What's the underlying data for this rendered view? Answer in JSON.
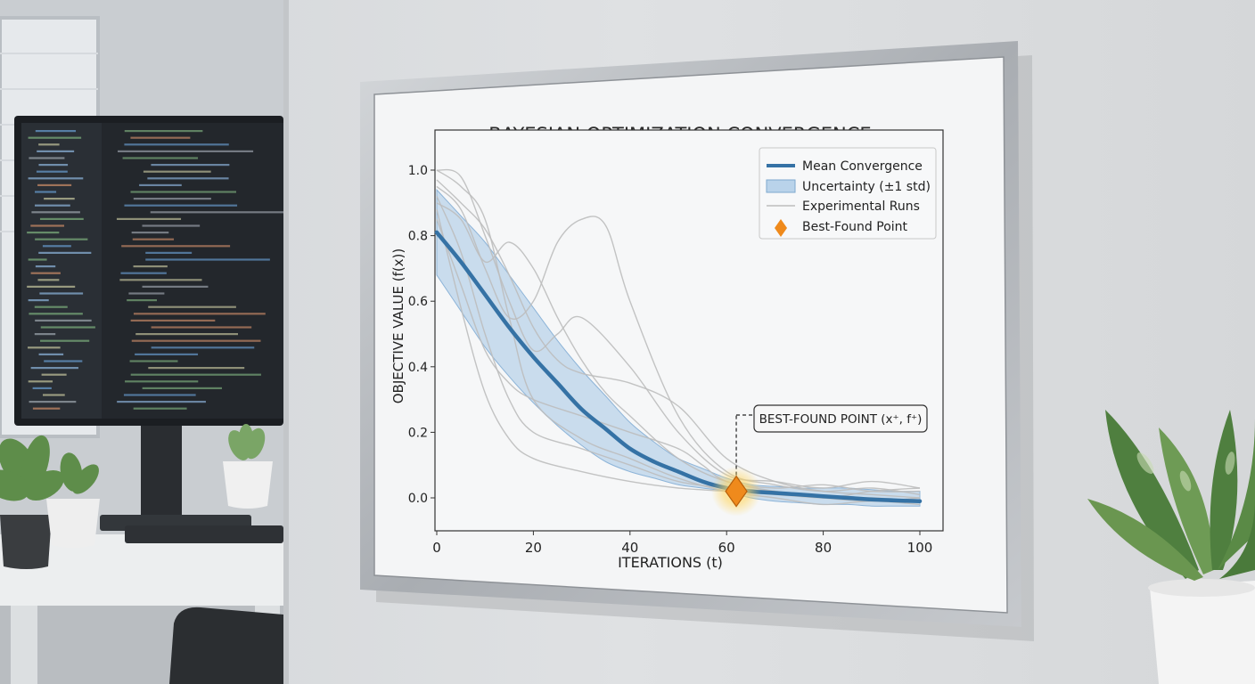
{
  "chart_data": {
    "type": "line",
    "title": "BAYESIAN OPTIMIZATION CONVERGENCE",
    "xlabel": "ITERATIONS (t)",
    "ylabel": "OBJECTIVE VALUE (f(x))",
    "xlim": [
      0,
      100
    ],
    "ylim": [
      -0.05,
      1.05
    ],
    "xticks": [
      "0",
      "20",
      "40",
      "60",
      "80",
      "100"
    ],
    "yticks": [
      "0.0",
      "0.2",
      "0.4",
      "0.6",
      "0.8",
      "1.0"
    ],
    "grid": false,
    "legend_position": "top-right",
    "legend": [
      {
        "label": "Mean Convergence",
        "kind": "line"
      },
      {
        "label": "Uncertainty (±1 std)",
        "kind": "band"
      },
      {
        "label": "Experimental Runs",
        "kind": "thin-line"
      },
      {
        "label": "Best-Found Point",
        "kind": "diamond"
      }
    ],
    "colors": {
      "mean": "#3572a5",
      "band": "#b9d3ea",
      "runs": "#bdbdbd",
      "best": "#ef8a1c"
    },
    "mean": {
      "x": [
        0,
        5,
        10,
        15,
        20,
        25,
        30,
        35,
        40,
        45,
        50,
        55,
        60,
        65,
        70,
        75,
        80,
        85,
        90,
        95,
        100
      ],
      "y": [
        0.81,
        0.72,
        0.62,
        0.52,
        0.43,
        0.35,
        0.27,
        0.21,
        0.15,
        0.11,
        0.08,
        0.05,
        0.03,
        0.02,
        0.015,
        0.01,
        0.005,
        0.0,
        -0.005,
        -0.008,
        -0.01
      ],
      "lower": [
        0.68,
        0.57,
        0.46,
        0.37,
        0.29,
        0.22,
        0.16,
        0.11,
        0.08,
        0.06,
        0.04,
        0.03,
        0.02,
        0.0,
        -0.01,
        -0.015,
        -0.02,
        -0.02,
        -0.025,
        -0.025,
        -0.025
      ],
      "upper": [
        0.94,
        0.86,
        0.78,
        0.68,
        0.58,
        0.48,
        0.39,
        0.31,
        0.23,
        0.17,
        0.12,
        0.09,
        0.06,
        0.04,
        0.035,
        0.03,
        0.03,
        0.03,
        0.025,
        0.02,
        0.02
      ]
    },
    "runs": [
      {
        "x": [
          0,
          5,
          10,
          15,
          20,
          30,
          40,
          50,
          60,
          70,
          80,
          90,
          100
        ],
        "y": [
          1.0,
          0.95,
          0.85,
          0.55,
          0.3,
          0.18,
          0.12,
          0.06,
          0.02,
          0.0,
          -0.02,
          -0.01,
          -0.02
        ]
      },
      {
        "x": [
          0,
          5,
          10,
          15,
          20,
          25,
          30,
          35,
          40,
          50,
          60,
          70,
          80,
          90,
          100
        ],
        "y": [
          0.95,
          0.88,
          0.7,
          0.55,
          0.6,
          0.78,
          0.85,
          0.83,
          0.6,
          0.25,
          0.08,
          0.04,
          0.02,
          0.03,
          0.01
        ]
      },
      {
        "x": [
          0,
          5,
          10,
          15,
          20,
          25,
          30,
          40,
          50,
          60,
          70,
          80,
          90,
          100
        ],
        "y": [
          1.0,
          0.98,
          0.8,
          0.6,
          0.45,
          0.5,
          0.55,
          0.4,
          0.2,
          0.07,
          0.05,
          0.03,
          0.05,
          0.03
        ]
      },
      {
        "x": [
          0,
          5,
          10,
          15,
          20,
          30,
          40,
          50,
          60,
          70,
          80,
          90,
          100
        ],
        "y": [
          0.92,
          0.75,
          0.5,
          0.3,
          0.2,
          0.15,
          0.1,
          0.05,
          0.03,
          0.02,
          0.0,
          -0.01,
          0.0
        ]
      },
      {
        "x": [
          0,
          5,
          10,
          15,
          20,
          25,
          30,
          40,
          50,
          60,
          70,
          80,
          90,
          100
        ],
        "y": [
          0.97,
          0.9,
          0.82,
          0.68,
          0.52,
          0.42,
          0.38,
          0.35,
          0.28,
          0.12,
          0.05,
          0.02,
          0.01,
          0.0
        ]
      },
      {
        "x": [
          0,
          5,
          10,
          15,
          20,
          30,
          40,
          50,
          55,
          60,
          70,
          80,
          90,
          100
        ],
        "y": [
          0.85,
          0.65,
          0.45,
          0.35,
          0.3,
          0.25,
          0.2,
          0.15,
          0.1,
          0.05,
          0.02,
          0.0,
          0.02,
          0.03
        ]
      },
      {
        "x": [
          0,
          5,
          10,
          15,
          20,
          25,
          30,
          35,
          40,
          50,
          60,
          70,
          80,
          90,
          100
        ],
        "y": [
          0.9,
          0.85,
          0.72,
          0.78,
          0.7,
          0.55,
          0.42,
          0.32,
          0.25,
          0.12,
          0.05,
          0.03,
          0.04,
          0.02,
          0.02
        ]
      },
      {
        "x": [
          0,
          5,
          10,
          15,
          20,
          30,
          40,
          50,
          60,
          70,
          80,
          90,
          100
        ],
        "y": [
          0.88,
          0.58,
          0.32,
          0.18,
          0.12,
          0.08,
          0.05,
          0.03,
          0.02,
          0.01,
          0.0,
          0.0,
          -0.01
        ]
      }
    ],
    "best_point": {
      "x": 62,
      "y": 0.02,
      "label": "BEST-FOUND POINT (x⁺, f⁺)"
    }
  }
}
